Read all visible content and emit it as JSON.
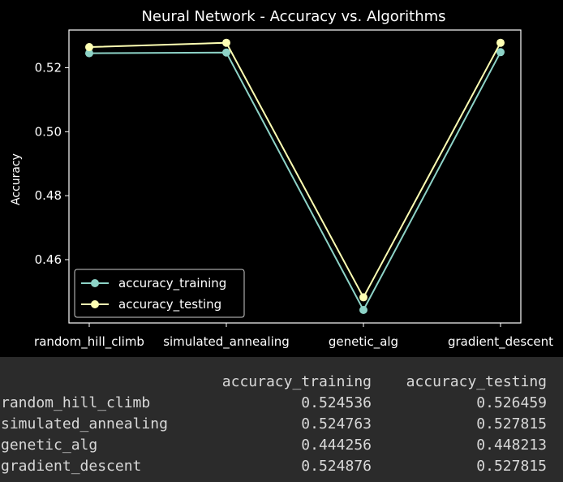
{
  "chart_data": {
    "type": "line",
    "title": "Neural Network - Accuracy vs. Algorithms",
    "xlabel": "",
    "ylabel": "Accuracy",
    "categories": [
      "random_hill_climb",
      "simulated_annealing",
      "genetic_alg",
      "gradient_descent"
    ],
    "series": [
      {
        "name": "accuracy_training",
        "values": [
          0.524536,
          0.524763,
          0.444256,
          0.524876
        ],
        "color": "#8dd3c7"
      },
      {
        "name": "accuracy_testing",
        "values": [
          0.526459,
          0.527815,
          0.448213,
          0.527815
        ],
        "color": "#feffb3"
      }
    ],
    "ylim": [
      0.4402,
      0.5318
    ],
    "yticks": [
      "0.46",
      "0.48",
      "0.50",
      "0.52"
    ],
    "grid": false,
    "legend_position": "lower-left"
  },
  "table": {
    "headers": [
      "accuracy_training",
      "accuracy_testing"
    ],
    "rows": [
      {
        "label": "random_hill_climb",
        "values": [
          "0.524536",
          "0.526459"
        ]
      },
      {
        "label": "simulated_annealing",
        "values": [
          "0.524763",
          "0.527815"
        ]
      },
      {
        "label": "genetic_alg",
        "values": [
          "0.444256",
          "0.448213"
        ]
      },
      {
        "label": "gradient_descent",
        "values": [
          "0.524876",
          "0.527815"
        ]
      }
    ]
  },
  "colors": {
    "figure_background": "#000000",
    "table_background": "#2b2b2b",
    "text": "#ffffff"
  }
}
